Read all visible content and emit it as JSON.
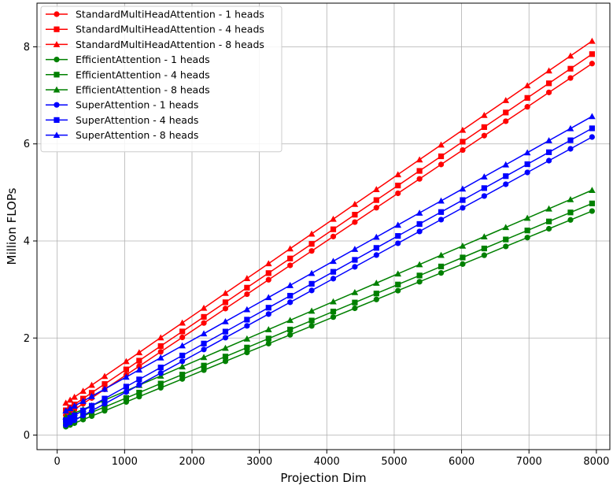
{
  "chart_data": {
    "type": "line",
    "title": "",
    "xlabel": "Projection Dim",
    "ylabel": "Million FLOPs",
    "xlim": [
      -300,
      8200
    ],
    "ylim": [
      -0.3,
      8.9
    ],
    "xticks": [
      0,
      1000,
      2000,
      3000,
      4000,
      5000,
      6000,
      7000,
      8000
    ],
    "yticks": [
      0,
      2,
      4,
      6,
      8
    ],
    "grid": true,
    "legend_position": "top-left",
    "x": [
      128,
      192,
      256,
      384,
      512,
      704,
      1024,
      1216,
      1536,
      1856,
      2176,
      2496,
      2816,
      3136,
      3456,
      3776,
      4096,
      4416,
      4736,
      5056,
      5376,
      5696,
      6016,
      6336,
      6656,
      6976,
      7296,
      7616,
      7936
    ],
    "series": [
      {
        "name": "StandardMultiHeadAttention - 1 heads",
        "color": "#ff0000",
        "marker": "circle",
        "intercept": 0.29,
        "slope": 0.000928
      },
      {
        "name": "StandardMultiHeadAttention - 4 heads",
        "color": "#ff0000",
        "marker": "square",
        "intercept": 0.39,
        "slope": 0.00094
      },
      {
        "name": "StandardMultiHeadAttention - 8 heads",
        "color": "#ff0000",
        "marker": "triangle",
        "intercept": 0.54,
        "slope": 0.000955
      },
      {
        "name": "EfficientAttention - 1 heads",
        "color": "#008000",
        "marker": "circle",
        "intercept": 0.1,
        "slope": 0.000569
      },
      {
        "name": "EfficientAttention - 4 heads",
        "color": "#008000",
        "marker": "square",
        "intercept": 0.17,
        "slope": 0.00058
      },
      {
        "name": "EfficientAttention - 8 heads",
        "color": "#008000",
        "marker": "triangle",
        "intercept": 0.3,
        "slope": 0.000598
      },
      {
        "name": "SuperAttention - 1 heads",
        "color": "#0000ff",
        "marker": "circle",
        "intercept": 0.11,
        "slope": 0.00076
      },
      {
        "name": "SuperAttention - 4 heads",
        "color": "#0000ff",
        "marker": "square",
        "intercept": 0.21,
        "slope": 0.00077
      },
      {
        "name": "SuperAttention - 8 heads",
        "color": "#0000ff",
        "marker": "triangle",
        "intercept": 0.4,
        "slope": 0.000777
      }
    ]
  }
}
